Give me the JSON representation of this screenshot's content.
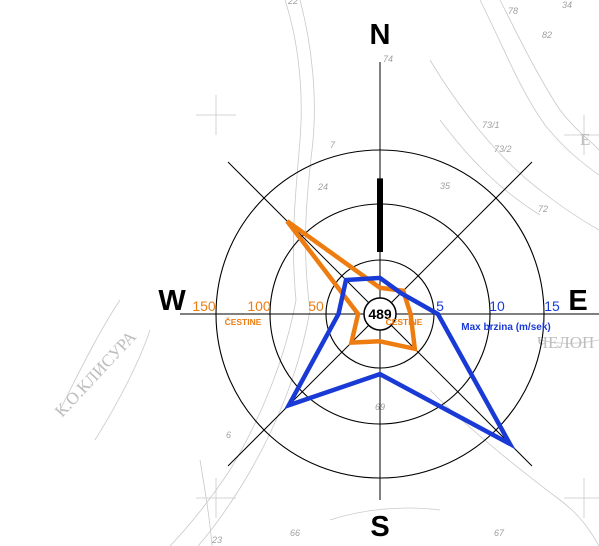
{
  "chart_data": {
    "type": "radar",
    "title": "",
    "directions": [
      "N",
      "E",
      "S",
      "W"
    ],
    "direction_labels": {
      "north": "N",
      "east": "E",
      "south": "S",
      "west": "W"
    },
    "angles_deg": [
      0,
      45,
      90,
      135,
      180,
      225,
      270,
      315
    ],
    "series": [
      {
        "name": "ČESTINE",
        "color": "#ee7d11",
        "values": [
          24,
          30,
          28,
          45,
          25,
          37,
          20,
          120
        ],
        "axis_ticks": [
          "150",
          "100",
          "50"
        ],
        "axis_unit": "ČESTINE",
        "axis_max": 150
      },
      {
        "name": "Max brzina  (m/sek)",
        "color": "#1a3ad6",
        "values": [
          3.3,
          2.7,
          5.3,
          16.8,
          5.5,
          11.8,
          3.8,
          4.4
        ],
        "axis_ticks": [
          "5",
          "10",
          "15"
        ],
        "axis_unit": "Max brzina  (m/sek)",
        "axis_max": 15
      }
    ],
    "prevailing_bar": {
      "direction": "N",
      "value": 124,
      "color": "#000000"
    },
    "center_value": "489",
    "center_unit": "ČESTINE",
    "grid": "concentric-circles"
  },
  "background_map": {
    "labels": [
      "К.О.КЛИСУРА",
      "ЧЕЛОП",
      "Е",
      "74",
      "73/1",
      "73/2",
      "72",
      "82",
      "78",
      "34",
      "35",
      "24",
      "7",
      "69",
      "6",
      "66",
      "67",
      "23",
      "22"
    ]
  }
}
